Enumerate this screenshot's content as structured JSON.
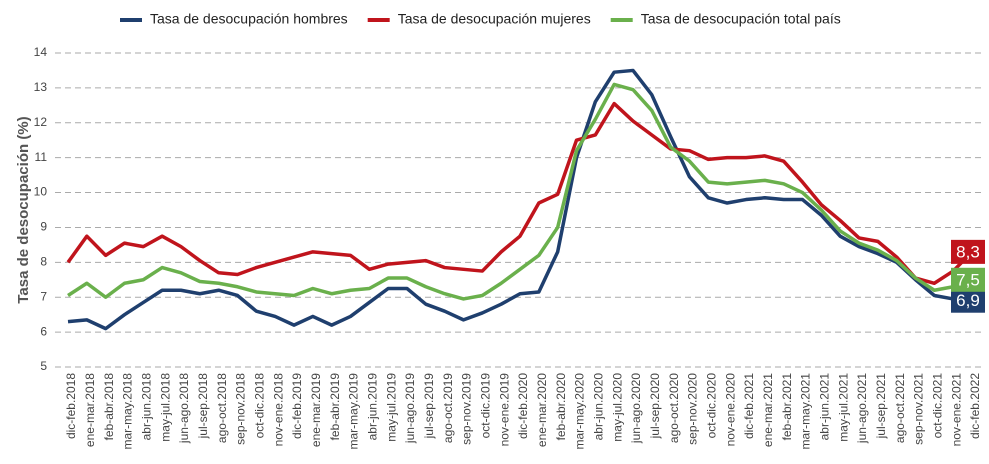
{
  "chart_data": {
    "type": "line",
    "y_label": "Tasa de desocupación (%)",
    "categories": [
      "dic-feb.2018",
      "ene-mar.2018",
      "feb-abr.2018",
      "mar-may.2018",
      "abr-jun.2018",
      "may-jul.2018",
      "jun-ago.2018",
      "jul-sep.2018",
      "ago-oct.2018",
      "sep-nov.2018",
      "oct-dic.2018",
      "nov-ene.2018",
      "dic-feb.2019",
      "ene-mar.2019",
      "feb-abr.2019",
      "mar-may.2019",
      "abr-jun.2019",
      "may-jul.2019",
      "jun-ago.2019",
      "jul-sep.2019",
      "ago-oct.2019",
      "sep-nov.2019",
      "oct-dic.2019",
      "nov-ene.2019",
      "dic-feb.2020",
      "ene-mar.2020",
      "feb-abr.2020",
      "mar-may.2020",
      "abr-jun.2020",
      "may-jul.2020",
      "jun-ago.2020",
      "jul-sep.2020",
      "ago-oct.2020",
      "sep-nov.2020",
      "oct-dic.2020",
      "nov-ene.2020",
      "dic-feb.2021",
      "ene-mar.2021",
      "feb-abr.2021",
      "mar-may.2021",
      "abr-jun.2021",
      "may-jul.2021",
      "jun-ago.2021",
      "jul-sep.2021",
      "ago-oct.2021",
      "sep-nov.2021",
      "oct-dic.2021",
      "nov-ene.2021",
      "dic-feb.2022"
    ],
    "series": [
      {
        "name": "Tasa de desocupación hombres",
        "color": "#1f3f6e",
        "values": [
          6.3,
          6.35,
          6.1,
          6.5,
          6.85,
          7.2,
          7.2,
          7.1,
          7.2,
          7.05,
          6.6,
          6.45,
          6.2,
          6.45,
          6.2,
          6.45,
          6.85,
          7.25,
          7.25,
          6.8,
          6.6,
          6.35,
          6.55,
          6.8,
          7.1,
          7.15,
          8.3,
          11.0,
          12.6,
          13.45,
          13.5,
          12.8,
          11.6,
          10.45,
          9.85,
          9.7,
          9.8,
          9.85,
          9.8,
          9.8,
          9.35,
          8.75,
          8.45,
          8.25,
          8.0,
          7.5,
          7.05,
          6.95,
          6.9
        ],
        "value_labels": [
          null,
          null,
          null,
          null,
          null,
          null,
          null,
          null,
          null,
          null,
          null,
          null,
          null,
          null,
          null,
          null,
          null,
          null,
          null,
          null,
          null,
          null,
          null,
          null,
          null,
          null,
          null,
          null,
          null,
          null,
          null,
          null,
          null,
          null,
          null,
          null,
          null,
          null,
          null,
          null,
          null,
          null,
          null,
          null,
          null,
          null,
          null,
          null,
          "6,9"
        ]
      },
      {
        "name": "Tasa de desocupación mujeres",
        "color": "#c0141c",
        "values": [
          8.0,
          8.75,
          8.2,
          8.55,
          8.45,
          8.75,
          8.45,
          8.05,
          7.7,
          7.65,
          7.85,
          8.0,
          8.15,
          8.3,
          8.25,
          8.2,
          7.8,
          7.95,
          8.0,
          8.05,
          7.85,
          7.8,
          7.75,
          8.3,
          8.75,
          9.7,
          9.95,
          11.5,
          11.65,
          12.55,
          12.05,
          11.65,
          11.25,
          11.2,
          10.95,
          11.0,
          11.0,
          11.05,
          10.9,
          10.3,
          9.65,
          9.2,
          8.7,
          8.6,
          8.15,
          7.55,
          7.4,
          7.75,
          8.3
        ],
        "value_labels": [
          null,
          null,
          null,
          null,
          null,
          null,
          null,
          null,
          null,
          null,
          null,
          null,
          null,
          null,
          null,
          null,
          null,
          null,
          null,
          null,
          null,
          null,
          null,
          null,
          null,
          null,
          null,
          null,
          null,
          null,
          null,
          null,
          null,
          null,
          null,
          null,
          null,
          null,
          null,
          null,
          null,
          null,
          null,
          null,
          null,
          null,
          null,
          null,
          "8,3"
        ]
      },
      {
        "name": "Tasa de desocupación total país",
        "color": "#6ab04c",
        "values": [
          7.05,
          7.4,
          7.0,
          7.4,
          7.5,
          7.85,
          7.7,
          7.45,
          7.4,
          7.3,
          7.15,
          7.1,
          7.05,
          7.25,
          7.1,
          7.2,
          7.25,
          7.55,
          7.55,
          7.3,
          7.1,
          6.95,
          7.05,
          7.4,
          7.8,
          8.2,
          9.0,
          11.2,
          12.1,
          13.1,
          12.95,
          12.35,
          11.3,
          10.9,
          10.3,
          10.25,
          10.3,
          10.35,
          10.25,
          10.0,
          9.5,
          8.9,
          8.55,
          8.35,
          8.05,
          7.55,
          7.2,
          7.3,
          7.5
        ],
        "value_labels": [
          null,
          null,
          null,
          null,
          null,
          null,
          null,
          null,
          null,
          null,
          null,
          null,
          null,
          null,
          null,
          null,
          null,
          null,
          null,
          null,
          null,
          null,
          null,
          null,
          null,
          null,
          null,
          null,
          null,
          null,
          null,
          null,
          null,
          null,
          null,
          null,
          null,
          null,
          null,
          null,
          null,
          null,
          null,
          null,
          null,
          null,
          null,
          null,
          "7,5"
        ]
      }
    ],
    "ylim": [
      5,
      14
    ],
    "yticks": [
      5,
      6,
      7,
      8,
      9,
      10,
      11,
      12,
      13,
      14
    ],
    "grid": true,
    "legend": "top"
  }
}
